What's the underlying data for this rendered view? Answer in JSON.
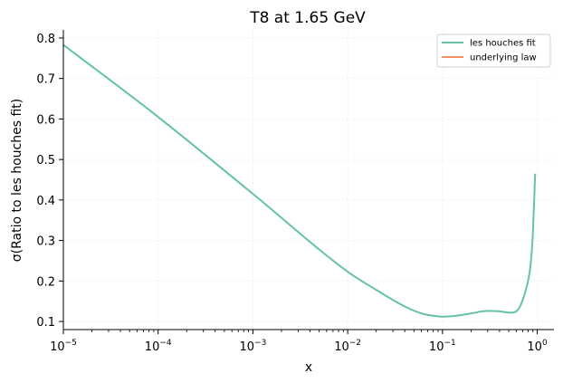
{
  "chart_data": {
    "type": "line",
    "title": "T8 at 1.65 GeV",
    "xlabel": "x",
    "ylabel": "σ(Ratio to les houches fit)",
    "xscale": "log",
    "xlim": [
      1e-05,
      1.5
    ],
    "ylim": [
      0.08,
      0.82
    ],
    "grid": true,
    "legend_position": "top-right",
    "x_ticks": [
      {
        "value": 1e-05,
        "base": "10",
        "exp": "−5"
      },
      {
        "value": 0.0001,
        "base": "10",
        "exp": "−4"
      },
      {
        "value": 0.001,
        "base": "10",
        "exp": "−3"
      },
      {
        "value": 0.01,
        "base": "10",
        "exp": "−2"
      },
      {
        "value": 0.1,
        "base": "10",
        "exp": "−1"
      },
      {
        "value": 1,
        "base": "10",
        "exp": "0"
      }
    ],
    "y_ticks": [
      {
        "value": 0.1,
        "label": "0.1"
      },
      {
        "value": 0.2,
        "label": "0.2"
      },
      {
        "value": 0.3,
        "label": "0.3"
      },
      {
        "value": 0.4,
        "label": "0.4"
      },
      {
        "value": 0.5,
        "label": "0.5"
      },
      {
        "value": 0.6,
        "label": "0.6"
      },
      {
        "value": 0.7,
        "label": "0.7"
      },
      {
        "value": 0.8,
        "label": "0.8"
      }
    ],
    "series": [
      {
        "name": "les houches fit",
        "color": "#66c2a5",
        "x": [
          1e-05,
          0.0001,
          0.001,
          0.01,
          0.02,
          0.04,
          0.06,
          0.08,
          0.1,
          0.15,
          0.2,
          0.3,
          0.4,
          0.5,
          0.6,
          0.65,
          0.7,
          0.75,
          0.8,
          0.85,
          0.9,
          0.95
        ],
        "y": [
          0.783,
          0.605,
          0.415,
          0.223,
          0.178,
          0.137,
          0.12,
          0.114,
          0.112,
          0.115,
          0.12,
          0.126,
          0.125,
          0.122,
          0.125,
          0.135,
          0.152,
          0.175,
          0.2,
          0.24,
          0.32,
          0.465
        ]
      },
      {
        "name": "underlying law",
        "color": "#fc8d62",
        "x": [],
        "y": []
      }
    ]
  }
}
